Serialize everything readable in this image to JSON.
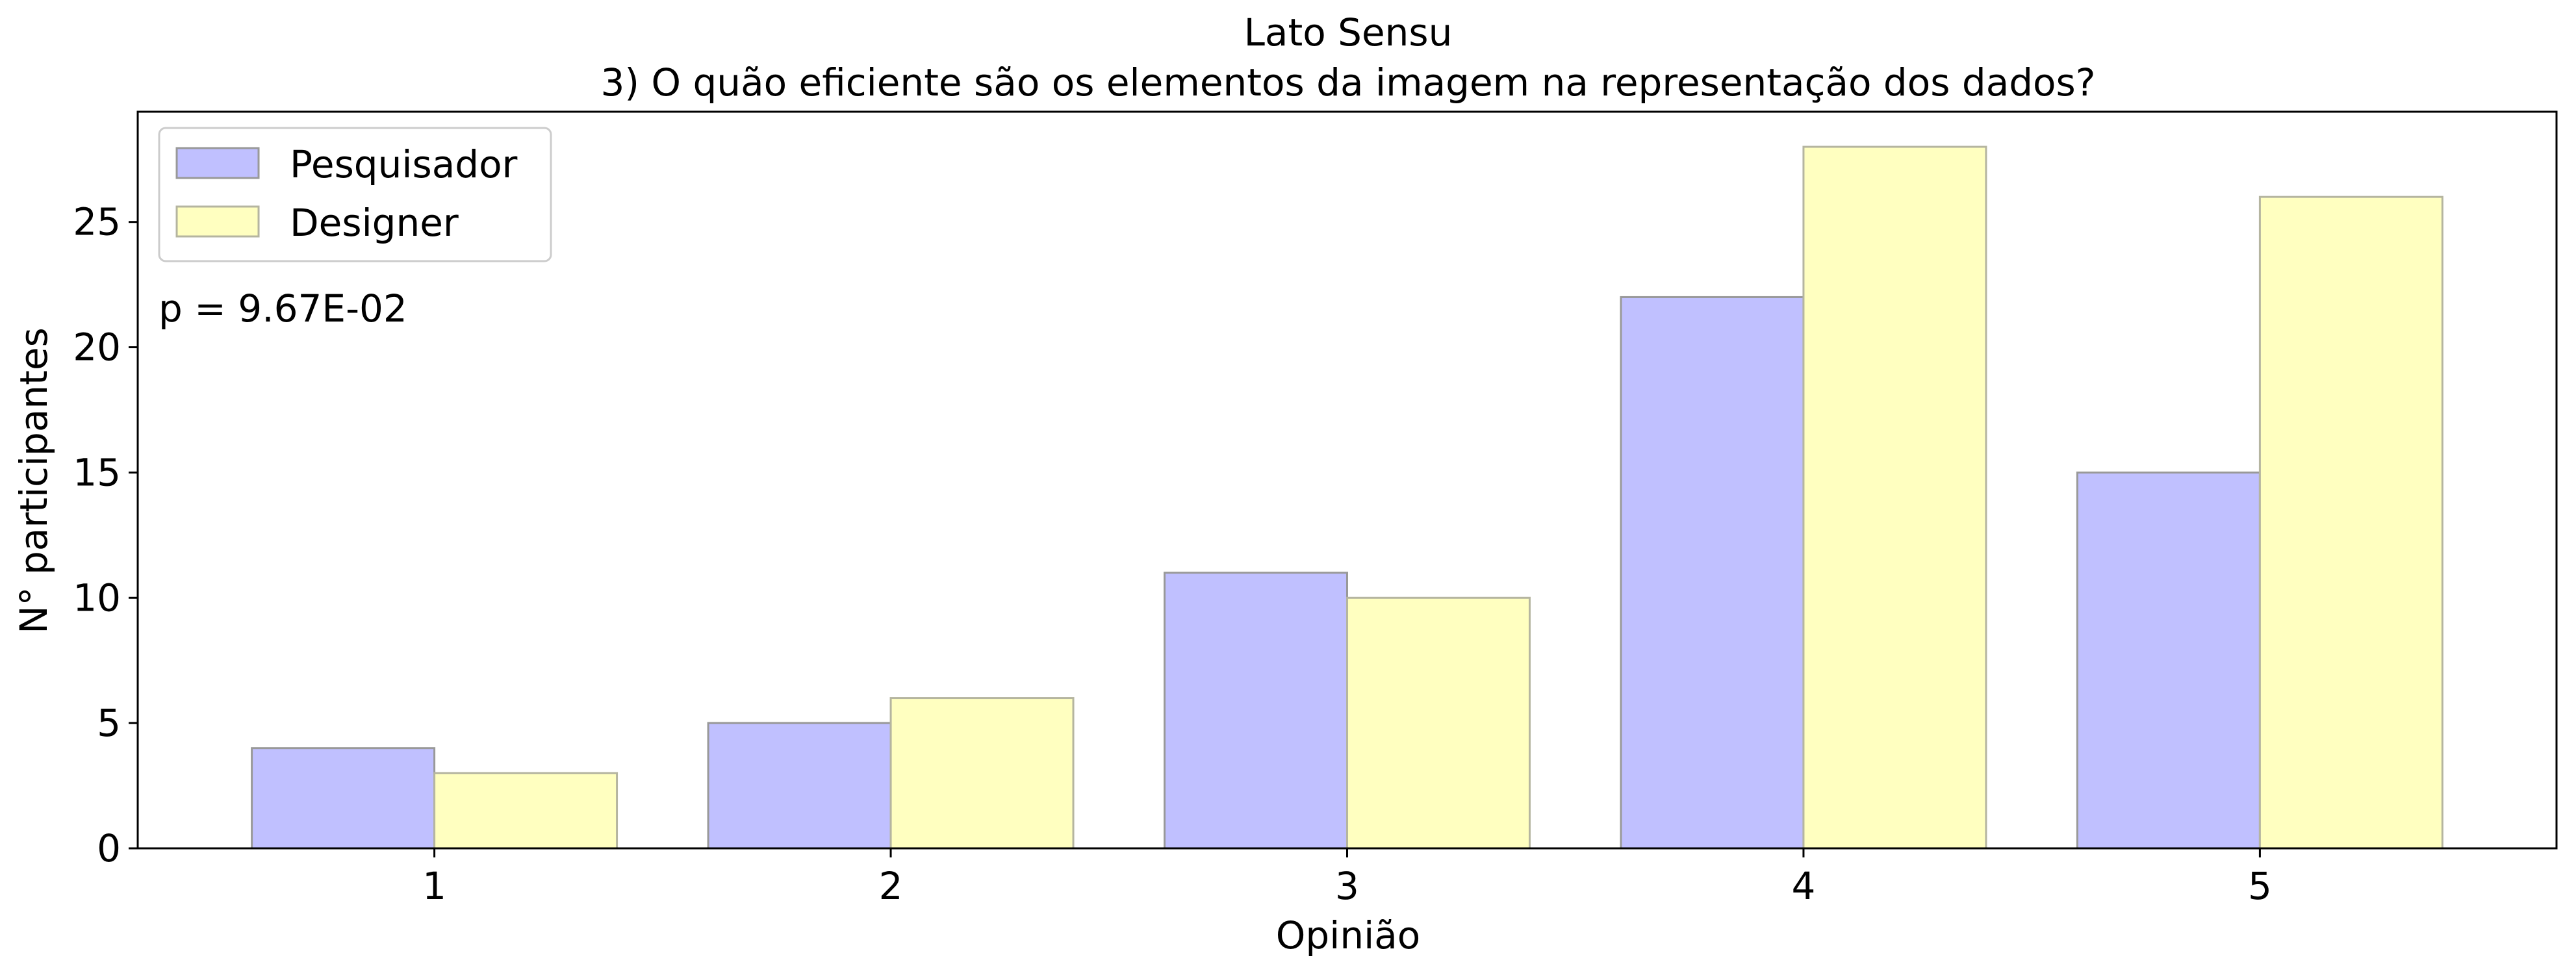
{
  "chart_data": {
    "type": "bar",
    "title": "Lato Sensu",
    "subtitle": "3) O quão eficiente são os elementos da imagem na representação dos dados?",
    "xlabel": "Opinião",
    "ylabel": "N° participantes",
    "categories": [
      "1",
      "2",
      "3",
      "4",
      "5"
    ],
    "series": [
      {
        "name": "Pesquisador",
        "values": [
          4,
          5,
          11,
          22,
          15
        ],
        "color": "#c0c0ff"
      },
      {
        "name": "Designer",
        "values": [
          3,
          6,
          10,
          28,
          26
        ],
        "color": "#ffffc0"
      }
    ],
    "ylim": [
      0,
      29.4
    ],
    "yticks": [
      0,
      5,
      10,
      15,
      20,
      25
    ],
    "grid": false,
    "legend_position": "top-left",
    "annotation": "p = 9.67E-02"
  }
}
